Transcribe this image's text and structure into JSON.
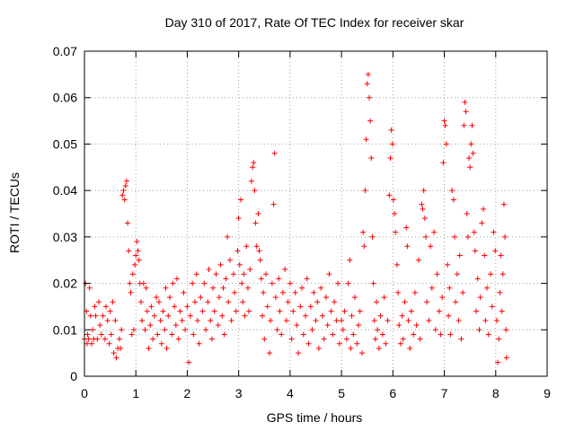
{
  "chart_data": {
    "type": "scatter",
    "title": "Day 310 of 2017, Rate Of TEC Index for receiver skar",
    "xlabel": "GPS time / hours",
    "ylabel": "ROTI / TECUs",
    "xlim": [
      0,
      9
    ],
    "ylim": [
      0,
      0.07
    ],
    "x_ticks": [
      "0",
      "1",
      "2",
      "3",
      "4",
      "5",
      "6",
      "7",
      "8",
      "9"
    ],
    "y_ticks": [
      "0",
      "0.01",
      "0.02",
      "0.03",
      "0.04",
      "0.05",
      "0.06",
      "0.07"
    ],
    "grid": true,
    "marker": "+",
    "colors": {
      "series": "#ff0000",
      "grid": "#a0a0a0",
      "axes": "#000000"
    },
    "series": [
      {
        "points": [
          [
            0.0,
            0.008
          ],
          [
            0.02,
            0.02
          ],
          [
            0.04,
            0.014
          ],
          [
            0.05,
            0.007
          ],
          [
            0.06,
            0.009
          ],
          [
            0.08,
            0.008
          ],
          [
            0.1,
            0.019
          ],
          [
            0.12,
            0.013
          ],
          [
            0.14,
            0.007
          ],
          [
            0.16,
            0.01
          ],
          [
            0.18,
            0.008
          ],
          [
            0.2,
            0.015
          ],
          [
            0.22,
            0.013
          ],
          [
            0.25,
            0.008
          ],
          [
            0.28,
            0.016
          ],
          [
            0.3,
            0.011
          ],
          [
            0.33,
            0.009
          ],
          [
            0.36,
            0.013
          ],
          [
            0.4,
            0.008
          ],
          [
            0.42,
            0.015
          ],
          [
            0.45,
            0.012
          ],
          [
            0.48,
            0.007
          ],
          [
            0.5,
            0.014
          ],
          [
            0.52,
            0.009
          ],
          [
            0.55,
            0.016
          ],
          [
            0.57,
            0.005
          ],
          [
            0.6,
            0.012
          ],
          [
            0.62,
            0.004
          ],
          [
            0.65,
            0.006
          ],
          [
            0.68,
            0.008
          ],
          [
            0.7,
            0.006
          ],
          [
            0.72,
            0.01
          ],
          [
            0.74,
            0.039
          ],
          [
            0.76,
            0.04
          ],
          [
            0.78,
            0.038
          ],
          [
            0.8,
            0.041
          ],
          [
            0.82,
            0.042
          ],
          [
            0.84,
            0.033
          ],
          [
            0.86,
            0.027
          ],
          [
            0.88,
            0.02
          ],
          [
            0.9,
            0.018
          ],
          [
            0.92,
            0.009
          ],
          [
            0.94,
            0.022
          ],
          [
            0.96,
            0.01
          ],
          [
            0.98,
            0.024
          ],
          [
            1.0,
            0.026
          ],
          [
            1.02,
            0.029
          ],
          [
            1.04,
            0.027
          ],
          [
            1.06,
            0.025
          ],
          [
            1.08,
            0.02
          ],
          [
            1.1,
            0.016
          ],
          [
            1.12,
            0.012
          ],
          [
            1.15,
            0.02
          ],
          [
            1.18,
            0.01
          ],
          [
            1.2,
            0.019
          ],
          [
            1.22,
            0.014
          ],
          [
            1.25,
            0.006
          ],
          [
            1.28,
            0.011
          ],
          [
            1.3,
            0.015
          ],
          [
            1.33,
            0.008
          ],
          [
            1.36,
            0.013
          ],
          [
            1.4,
            0.017
          ],
          [
            1.42,
            0.009
          ],
          [
            1.45,
            0.016
          ],
          [
            1.48,
            0.012
          ],
          [
            1.5,
            0.007
          ],
          [
            1.53,
            0.014
          ],
          [
            1.56,
            0.01
          ],
          [
            1.58,
            0.019
          ],
          [
            1.6,
            0.006
          ],
          [
            1.63,
            0.013
          ],
          [
            1.66,
            0.017
          ],
          [
            1.7,
            0.009
          ],
          [
            1.72,
            0.02
          ],
          [
            1.75,
            0.015
          ],
          [
            1.78,
            0.011
          ],
          [
            1.8,
            0.021
          ],
          [
            1.83,
            0.008
          ],
          [
            1.86,
            0.014
          ],
          [
            1.9,
            0.012
          ],
          [
            1.93,
            0.018
          ],
          [
            1.96,
            0.01
          ],
          [
            2.0,
            0.015
          ],
          [
            2.03,
            0.003
          ],
          [
            2.06,
            0.013
          ],
          [
            2.1,
            0.02
          ],
          [
            2.12,
            0.009
          ],
          [
            2.15,
            0.016
          ],
          [
            2.18,
            0.022
          ],
          [
            2.2,
            0.012
          ],
          [
            2.23,
            0.007
          ],
          [
            2.26,
            0.017
          ],
          [
            2.3,
            0.014
          ],
          [
            2.33,
            0.02
          ],
          [
            2.36,
            0.01
          ],
          [
            2.4,
            0.016
          ],
          [
            2.42,
            0.023
          ],
          [
            2.45,
            0.012
          ],
          [
            2.48,
            0.008
          ],
          [
            2.5,
            0.019
          ],
          [
            2.53,
            0.014
          ],
          [
            2.56,
            0.022
          ],
          [
            2.6,
            0.011
          ],
          [
            2.62,
            0.017
          ],
          [
            2.65,
            0.024
          ],
          [
            2.68,
            0.013
          ],
          [
            2.7,
            0.019
          ],
          [
            2.72,
            0.009
          ],
          [
            2.75,
            0.021
          ],
          [
            2.78,
            0.03
          ],
          [
            2.8,
            0.016
          ],
          [
            2.83,
            0.025
          ],
          [
            2.86,
            0.012
          ],
          [
            2.9,
            0.022
          ],
          [
            2.92,
            0.018
          ],
          [
            2.95,
            0.014
          ],
          [
            2.98,
            0.027
          ],
          [
            3.0,
            0.034
          ],
          [
            3.02,
            0.024
          ],
          [
            3.04,
            0.038
          ],
          [
            3.06,
            0.02
          ],
          [
            3.08,
            0.016
          ],
          [
            3.1,
            0.022
          ],
          [
            3.12,
            0.013
          ],
          [
            3.15,
            0.028
          ],
          [
            3.18,
            0.019
          ],
          [
            3.2,
            0.014
          ],
          [
            3.22,
            0.023
          ],
          [
            3.25,
            0.042
          ],
          [
            3.27,
            0.045
          ],
          [
            3.29,
            0.046
          ],
          [
            3.31,
            0.04
          ],
          [
            3.33,
            0.033
          ],
          [
            3.35,
            0.028
          ],
          [
            3.38,
            0.035
          ],
          [
            3.4,
            0.027
          ],
          [
            3.42,
            0.025
          ],
          [
            3.44,
            0.021
          ],
          [
            3.46,
            0.013
          ],
          [
            3.48,
            0.018
          ],
          [
            3.5,
            0.008
          ],
          [
            3.53,
            0.022
          ],
          [
            3.56,
            0.015
          ],
          [
            3.6,
            0.005
          ],
          [
            3.62,
            0.012
          ],
          [
            3.65,
            0.02
          ],
          [
            3.68,
            0.037
          ],
          [
            3.7,
            0.048
          ],
          [
            3.72,
            0.017
          ],
          [
            3.75,
            0.01
          ],
          [
            3.78,
            0.021
          ],
          [
            3.8,
            0.014
          ],
          [
            3.83,
            0.009
          ],
          [
            3.86,
            0.018
          ],
          [
            3.9,
            0.023
          ],
          [
            3.93,
            0.012
          ],
          [
            3.96,
            0.016
          ],
          [
            4.0,
            0.02
          ],
          [
            4.03,
            0.008
          ],
          [
            4.06,
            0.014
          ],
          [
            4.1,
            0.018
          ],
          [
            4.13,
            0.011
          ],
          [
            4.16,
            0.005
          ],
          [
            4.2,
            0.015
          ],
          [
            4.23,
            0.019
          ],
          [
            4.26,
            0.009
          ],
          [
            4.3,
            0.013
          ],
          [
            4.33,
            0.021
          ],
          [
            4.36,
            0.007
          ],
          [
            4.4,
            0.015
          ],
          [
            4.43,
            0.01
          ],
          [
            4.46,
            0.018
          ],
          [
            4.5,
            0.012
          ],
          [
            4.53,
            0.016
          ],
          [
            4.56,
            0.006
          ],
          [
            4.6,
            0.019
          ],
          [
            4.63,
            0.013
          ],
          [
            4.66,
            0.008
          ],
          [
            4.7,
            0.017
          ],
          [
            4.73,
            0.011
          ],
          [
            4.76,
            0.022
          ],
          [
            4.8,
            0.014
          ],
          [
            4.83,
            0.009
          ],
          [
            4.86,
            0.016
          ],
          [
            4.9,
            0.012
          ],
          [
            4.93,
            0.02
          ],
          [
            4.96,
            0.007
          ],
          [
            5.0,
            0.012
          ],
          [
            5.03,
            0.01
          ],
          [
            5.06,
            0.014
          ],
          [
            5.1,
            0.008
          ],
          [
            5.13,
            0.02
          ],
          [
            5.16,
            0.025
          ],
          [
            5.18,
            0.006
          ],
          [
            5.2,
            0.013
          ],
          [
            5.23,
            0.009
          ],
          [
            5.26,
            0.017
          ],
          [
            5.3,
            0.007
          ],
          [
            5.33,
            0.011
          ],
          [
            5.36,
            0.014
          ],
          [
            5.4,
            0.005
          ],
          [
            5.42,
            0.031
          ],
          [
            5.44,
            0.028
          ],
          [
            5.46,
            0.04
          ],
          [
            5.48,
            0.051
          ],
          [
            5.5,
            0.063
          ],
          [
            5.52,
            0.065
          ],
          [
            5.54,
            0.06
          ],
          [
            5.56,
            0.055
          ],
          [
            5.58,
            0.047
          ],
          [
            5.6,
            0.03
          ],
          [
            5.62,
            0.02
          ],
          [
            5.64,
            0.012
          ],
          [
            5.66,
            0.008
          ],
          [
            5.68,
            0.016
          ],
          [
            5.7,
            0.01
          ],
          [
            5.73,
            0.006
          ],
          [
            5.76,
            0.013
          ],
          [
            5.8,
            0.009
          ],
          [
            5.83,
            0.017
          ],
          [
            5.86,
            0.007
          ],
          [
            5.9,
            0.012
          ],
          [
            5.93,
            0.039
          ],
          [
            5.95,
            0.047
          ],
          [
            5.97,
            0.053
          ],
          [
            5.99,
            0.05
          ],
          [
            6.01,
            0.038
          ],
          [
            6.03,
            0.035
          ],
          [
            6.05,
            0.031
          ],
          [
            6.08,
            0.024
          ],
          [
            6.1,
            0.018
          ],
          [
            6.12,
            0.011
          ],
          [
            6.15,
            0.007
          ],
          [
            6.18,
            0.013
          ],
          [
            6.2,
            0.008
          ],
          [
            6.23,
            0.016
          ],
          [
            6.26,
            0.032
          ],
          [
            6.28,
            0.028
          ],
          [
            6.3,
            0.012
          ],
          [
            6.33,
            0.006
          ],
          [
            6.36,
            0.014
          ],
          [
            6.4,
            0.009
          ],
          [
            6.43,
            0.018
          ],
          [
            6.46,
            0.011
          ],
          [
            6.5,
            0.025
          ],
          [
            6.53,
            0.008
          ],
          [
            6.56,
            0.037
          ],
          [
            6.58,
            0.036
          ],
          [
            6.6,
            0.04
          ],
          [
            6.62,
            0.034
          ],
          [
            6.64,
            0.03
          ],
          [
            6.66,
            0.016
          ],
          [
            6.7,
            0.012
          ],
          [
            6.73,
            0.028
          ],
          [
            6.76,
            0.019
          ],
          [
            6.8,
            0.031
          ],
          [
            6.83,
            0.01
          ],
          [
            6.86,
            0.022
          ],
          [
            6.9,
            0.014
          ],
          [
            6.93,
            0.009
          ],
          [
            6.96,
            0.017
          ],
          [
            6.98,
            0.046
          ],
          [
            7.0,
            0.055
          ],
          [
            7.02,
            0.054
          ],
          [
            7.04,
            0.05
          ],
          [
            7.06,
            0.024
          ],
          [
            7.08,
            0.013
          ],
          [
            7.1,
            0.019
          ],
          [
            7.12,
            0.009
          ],
          [
            7.15,
            0.04
          ],
          [
            7.18,
            0.038
          ],
          [
            7.2,
            0.03
          ],
          [
            7.22,
            0.016
          ],
          [
            7.25,
            0.022
          ],
          [
            7.28,
            0.012
          ],
          [
            7.3,
            0.026
          ],
          [
            7.33,
            0.008
          ],
          [
            7.36,
            0.018
          ],
          [
            7.38,
            0.054
          ],
          [
            7.4,
            0.059
          ],
          [
            7.42,
            0.057
          ],
          [
            7.44,
            0.035
          ],
          [
            7.46,
            0.03
          ],
          [
            7.48,
            0.047
          ],
          [
            7.5,
            0.045
          ],
          [
            7.52,
            0.05
          ],
          [
            7.54,
            0.054
          ],
          [
            7.56,
            0.048
          ],
          [
            7.58,
            0.031
          ],
          [
            7.6,
            0.027
          ],
          [
            7.62,
            0.014
          ],
          [
            7.65,
            0.021
          ],
          [
            7.68,
            0.01
          ],
          [
            7.7,
            0.017
          ],
          [
            7.73,
            0.033
          ],
          [
            7.76,
            0.036
          ],
          [
            7.78,
            0.026
          ],
          [
            7.8,
            0.012
          ],
          [
            7.83,
            0.019
          ],
          [
            7.86,
            0.009
          ],
          [
            7.9,
            0.022
          ],
          [
            7.93,
            0.015
          ],
          [
            7.96,
            0.031
          ],
          [
            7.99,
            0.027
          ],
          [
            8.02,
            0.012
          ],
          [
            8.04,
            0.003
          ],
          [
            8.06,
            0.008
          ],
          [
            8.08,
            0.018
          ],
          [
            8.1,
            0.026
          ],
          [
            8.12,
            0.014
          ],
          [
            8.14,
            0.022
          ],
          [
            8.16,
            0.037
          ],
          [
            8.18,
            0.03
          ],
          [
            8.2,
            0.01
          ],
          [
            8.21,
            0.004
          ]
        ]
      }
    ]
  }
}
